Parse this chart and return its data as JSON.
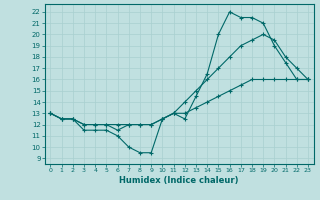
{
  "xlabel": "Humidex (Indice chaleur)",
  "bg_color": "#c0e0e0",
  "line_color": "#006868",
  "grid_color": "#a8d0d0",
  "xlim": [
    -0.5,
    23.5
  ],
  "ylim": [
    8.5,
    22.7
  ],
  "xticks": [
    0,
    1,
    2,
    3,
    4,
    5,
    6,
    7,
    8,
    9,
    10,
    11,
    12,
    13,
    14,
    15,
    16,
    17,
    18,
    19,
    20,
    21,
    22,
    23
  ],
  "yticks": [
    9,
    10,
    11,
    12,
    13,
    14,
    15,
    16,
    17,
    18,
    19,
    20,
    21,
    22
  ],
  "line1_x": [
    0,
    1,
    2,
    3,
    4,
    5,
    6,
    7,
    8,
    9,
    10,
    11,
    12,
    13,
    14,
    15,
    16,
    17,
    18,
    19,
    20,
    21,
    22,
    23
  ],
  "line1_y": [
    13,
    12.5,
    12.5,
    11.5,
    11.5,
    11.5,
    11,
    10,
    9.5,
    9.5,
    12.5,
    13,
    12.5,
    14.5,
    16.5,
    20,
    22,
    21.5,
    21.5,
    21,
    19,
    17.5,
    16,
    16
  ],
  "line2_x": [
    0,
    1,
    2,
    3,
    4,
    5,
    6,
    7,
    8,
    9,
    10,
    11,
    12,
    13,
    14,
    15,
    16,
    17,
    18,
    19,
    20,
    21,
    22,
    23
  ],
  "line2_y": [
    13,
    12.5,
    12.5,
    12,
    12,
    12,
    12,
    12,
    12,
    12,
    12.5,
    13,
    14,
    15,
    16,
    17,
    18,
    19,
    19.5,
    20,
    19.5,
    18,
    17,
    16
  ],
  "line3_x": [
    0,
    1,
    2,
    3,
    4,
    5,
    6,
    7,
    8,
    9,
    10,
    11,
    12,
    13,
    14,
    15,
    16,
    17,
    18,
    19,
    20,
    21,
    22,
    23
  ],
  "line3_y": [
    13,
    12.5,
    12.5,
    12,
    12,
    12,
    11.5,
    12,
    12,
    12,
    12.5,
    13,
    13,
    13.5,
    14,
    14.5,
    15,
    15.5,
    16,
    16,
    16,
    16,
    16,
    16
  ]
}
